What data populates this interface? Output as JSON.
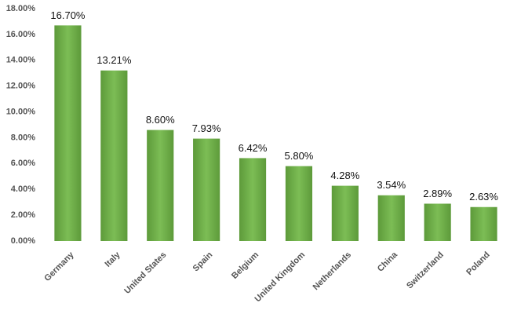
{
  "chart_data": {
    "type": "bar",
    "categories": [
      "Germany",
      "Italy",
      "United States",
      "Spain",
      "Belgium",
      "United Kingdom",
      "Netherlands",
      "China",
      "Switzerland",
      "Poland"
    ],
    "values": [
      16.7,
      13.21,
      8.6,
      7.93,
      6.42,
      5.8,
      4.28,
      3.54,
      2.89,
      2.63
    ],
    "value_labels": [
      "16.70%",
      "13.21%",
      "8.60%",
      "7.93%",
      "6.42%",
      "5.80%",
      "4.28%",
      "3.54%",
      "2.89%",
      "2.63%"
    ],
    "color": "#6aaa45",
    "ylim": [
      0,
      18
    ],
    "yticks": [
      {
        "value": 0,
        "label": "0.00%"
      },
      {
        "value": 2,
        "label": "2.00%"
      },
      {
        "value": 4,
        "label": "4.00%"
      },
      {
        "value": 6,
        "label": "6.00%"
      },
      {
        "value": 8,
        "label": "8.00%"
      },
      {
        "value": 10,
        "label": "10.00%"
      },
      {
        "value": 12,
        "label": "12.00%"
      },
      {
        "value": 14,
        "label": "14.00%"
      },
      {
        "value": 16,
        "label": "16.00%"
      },
      {
        "value": 18,
        "label": "18.00%"
      }
    ],
    "grid": false
  }
}
